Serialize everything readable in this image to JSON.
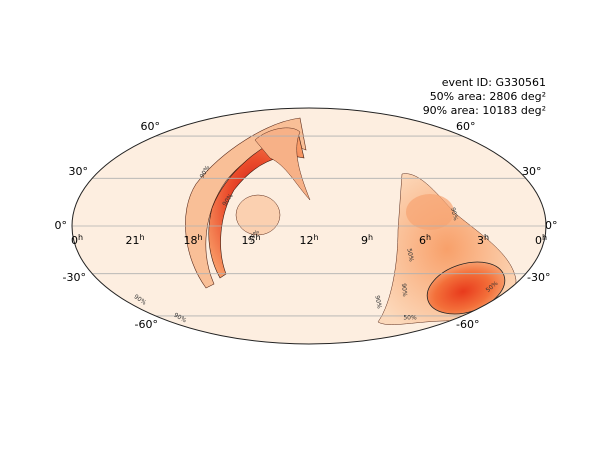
{
  "annotation": {
    "event_id": "event ID: G330561",
    "area_50": "50% area: 2806 deg²",
    "area_90": "90% area: 10183 deg²"
  },
  "latitude_labels": {
    "left": [
      "60°",
      "30°",
      "0°",
      "-30°",
      "-60°"
    ],
    "right": [
      "60°",
      "30°",
      "0°",
      "-30°",
      "-60°"
    ]
  },
  "longitude_labels": [
    {
      "hours": "0",
      "unit": "h"
    },
    {
      "hours": "21",
      "unit": "h"
    },
    {
      "hours": "18",
      "unit": "h"
    },
    {
      "hours": "15",
      "unit": "h"
    },
    {
      "hours": "12",
      "unit": "h"
    },
    {
      "hours": "9",
      "unit": "h"
    },
    {
      "hours": "6",
      "unit": "h"
    },
    {
      "hours": "3",
      "unit": "h"
    },
    {
      "hours": "0",
      "unit": "h"
    }
  ],
  "contour_labels": [
    "90%",
    "50%"
  ]
}
